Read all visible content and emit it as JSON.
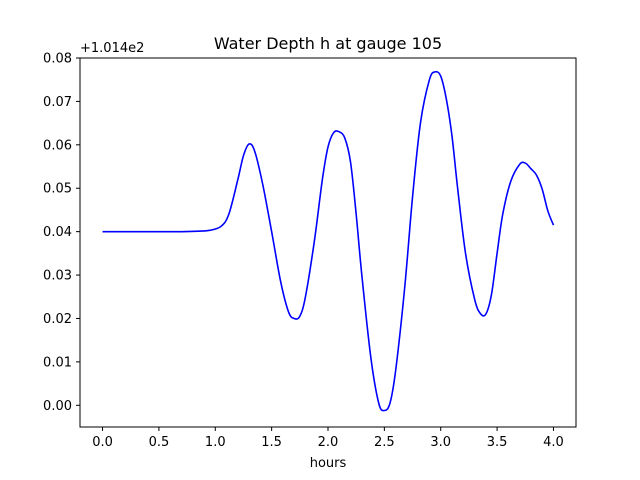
{
  "chart_data": {
    "type": "line",
    "title": "Water Depth h at gauge 105",
    "xlabel": "hours",
    "ylabel": "",
    "offset_text": "+1.014e2",
    "xlim": [
      -0.2,
      4.2
    ],
    "ylim": [
      -0.005,
      0.08
    ],
    "xticks": [
      0.0,
      0.5,
      1.0,
      1.5,
      2.0,
      2.5,
      3.0,
      3.5,
      4.0
    ],
    "xtick_labels": [
      "0.0",
      "0.5",
      "1.0",
      "1.5",
      "2.0",
      "2.5",
      "3.0",
      "3.5",
      "4.0"
    ],
    "yticks": [
      0.0,
      0.01,
      0.02,
      0.03,
      0.04,
      0.05,
      0.06,
      0.07,
      0.08
    ],
    "ytick_labels": [
      "0.00",
      "0.01",
      "0.02",
      "0.03",
      "0.04",
      "0.05",
      "0.06",
      "0.07",
      "0.08"
    ],
    "grid": false,
    "line_color": "#0000ff",
    "series": [
      {
        "x": [
          0.0,
          0.5,
          0.7,
          0.85,
          0.95,
          1.05,
          1.12,
          1.2,
          1.25,
          1.3,
          1.35,
          1.42,
          1.5,
          1.58,
          1.65,
          1.7,
          1.75,
          1.8,
          1.88,
          1.95,
          2.0,
          2.05,
          2.1,
          2.15,
          2.2,
          2.25,
          2.3,
          2.38,
          2.45,
          2.5,
          2.55,
          2.6,
          2.68,
          2.75,
          2.82,
          2.9,
          2.95,
          3.0,
          3.05,
          3.1,
          3.15,
          3.22,
          3.3,
          3.35,
          3.4,
          3.45,
          3.5,
          3.55,
          3.62,
          3.7,
          3.75,
          3.8,
          3.85,
          3.9,
          3.95,
          4.0
        ],
        "y": [
          0.04,
          0.04,
          0.04,
          0.0401,
          0.0403,
          0.0412,
          0.044,
          0.052,
          0.0575,
          0.0602,
          0.0585,
          0.051,
          0.04,
          0.0285,
          0.0215,
          0.02,
          0.0205,
          0.025,
          0.038,
          0.052,
          0.0595,
          0.0628,
          0.063,
          0.0615,
          0.056,
          0.044,
          0.03,
          0.011,
          0.0005,
          -0.0012,
          0.0005,
          0.008,
          0.027,
          0.048,
          0.065,
          0.075,
          0.0768,
          0.0758,
          0.0705,
          0.062,
          0.05,
          0.035,
          0.0245,
          0.0212,
          0.021,
          0.0255,
          0.035,
          0.044,
          0.0515,
          0.0555,
          0.0558,
          0.0545,
          0.053,
          0.0498,
          0.0448,
          0.0415
        ]
      }
    ]
  }
}
